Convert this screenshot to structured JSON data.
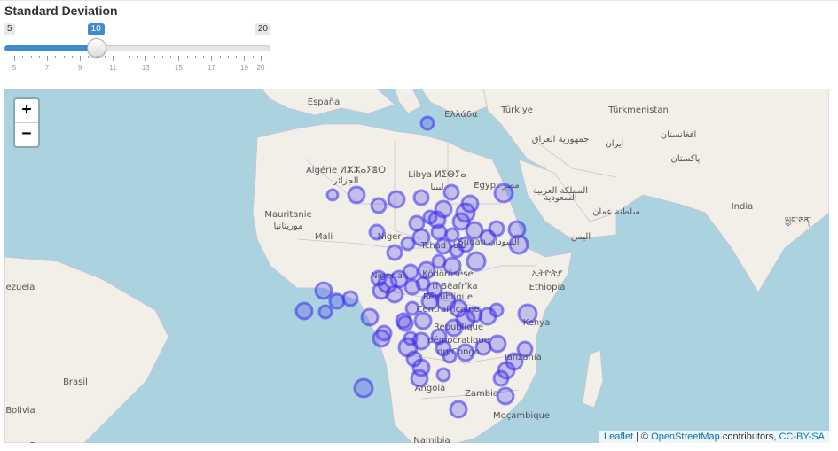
{
  "control": {
    "title": "Standard Deviation",
    "min": 5,
    "max": 20,
    "value": 10,
    "min_label": "5",
    "max_label": "20",
    "value_label": "10",
    "tick_labels": [
      "5",
      "7",
      "9",
      "11",
      "13",
      "15",
      "17",
      "19",
      "20"
    ]
  },
  "map": {
    "zoom_in": "+",
    "zoom_out": "−",
    "attribution": {
      "leaflet": "Leaflet",
      "sep": " | © ",
      "osm": "OpenStreetMap",
      "contrib": " contributors, ",
      "license": "CC-BY-SA"
    },
    "circle_color": "#3a2cf0",
    "places": [
      "España",
      "Ελλάδα",
      "Türkiye",
      "Türkmenistan",
      "جمهورية العراق",
      "ایران",
      "افغانستان",
      "پاکستان",
      "Algérie ⵍⵣⵣⴰⵢⴻⵔ",
      "الجزائر",
      "Libya ⵍⵉⴱⵢⴰ",
      "ليبيا",
      "Egypt مصر",
      "المملكة العربية",
      "السعودية",
      "Mauritanie",
      "موريتانيا",
      "Mali",
      "Niger",
      "Tchad تشاد",
      "Sudan السودان",
      "سلطنة عمان",
      "اليمن",
      "India",
      "ཡྱང་ཅན་",
      "ezuela",
      "Nigeria",
      "Ködörösêse",
      "tî Bêafrîka",
      "République",
      "Centrafricaine",
      "ኢትዮጵያ",
      "Ethiopia",
      "République",
      "démocratique",
      "du Congo",
      "Kenya",
      "Tanzania",
      "Brasil",
      "Angola",
      "Zambia",
      "Moçambique",
      "Bolivia",
      "Paraguay",
      "Namibia"
    ]
  }
}
